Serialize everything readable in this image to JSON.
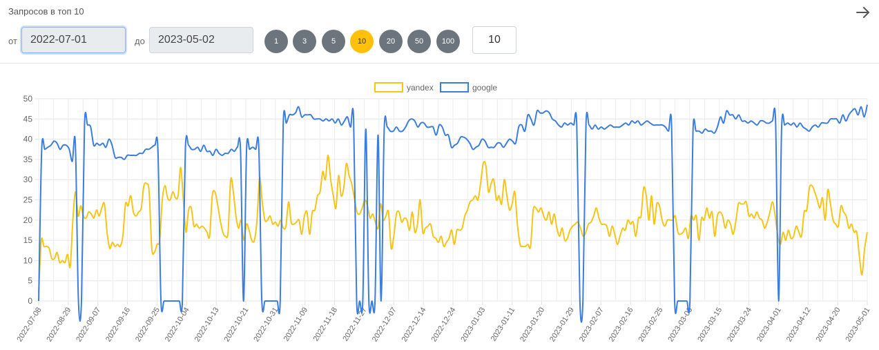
{
  "header": {
    "title": "Запросов в топ 10"
  },
  "filters": {
    "from_label": "от",
    "from_value": "2022-07-01",
    "to_label": "до",
    "to_value": "2023-05-02",
    "top_options": [
      "1",
      "3",
      "5",
      "10",
      "20",
      "50",
      "100"
    ],
    "top_selected": "10",
    "custom_value": "10"
  },
  "colors": {
    "yandex": "#f5c518",
    "google": "#3b7ddd",
    "pill": "#6c757d",
    "pill_active": "#ffc107"
  },
  "icons": {
    "next": "arrow-right-icon"
  },
  "chart_data": {
    "type": "line",
    "legend_position": "top-center",
    "grid": true,
    "ylim": [
      0,
      50
    ],
    "yticks": [
      0,
      5,
      10,
      15,
      20,
      25,
      30,
      35,
      40,
      45,
      50
    ],
    "x_start": "2022-07-08",
    "x_end": "2023-05-01",
    "x_ticks": [
      "2022-07-08",
      "2022-08-29",
      "2022-09-07",
      "2022-09-16",
      "2022-09-25",
      "2022-10-04",
      "2022-10-13",
      "2022-10-21",
      "2022-10-31",
      "2022-11-09",
      "2022-11-18",
      "2022-11-27",
      "2022-12-07",
      "2022-12-14",
      "2022-12-24",
      "2023-01-03",
      "2023-01-11",
      "2023-01-20",
      "2023-01-29",
      "2023-02-07",
      "2023-02-16",
      "2023-02-25",
      "2023-03-06",
      "2023-03-15",
      "2023-03-24",
      "2023-04-01",
      "2023-04-12",
      "2023-04-20",
      "2023-05-01"
    ],
    "series": [
      {
        "name": "yandex",
        "values": [
          2,
          15,
          13.5,
          13.5,
          13,
          10.5,
          10.5,
          12,
          9.5,
          10,
          9.5,
          11.5,
          8.5,
          20,
          27,
          21,
          23.5,
          21,
          20.5,
          22,
          21.5,
          20.5,
          22.5,
          21,
          23,
          24,
          17,
          13,
          14.5,
          13.5,
          14,
          13.5,
          16,
          24,
          23.5,
          26,
          22,
          21,
          22,
          23,
          28.5,
          29,
          27,
          13,
          12,
          14,
          15,
          25,
          28.5,
          25.5,
          25,
          27,
          25.5,
          26,
          33,
          25,
          17,
          22.5,
          23,
          18.5,
          19,
          18,
          18.5,
          18,
          17,
          16,
          26,
          27,
          24,
          20,
          17,
          16,
          17,
          30,
          27,
          21,
          18,
          20,
          15,
          19,
          17.5,
          15,
          15,
          20,
          30.5,
          24.5,
          20,
          20,
          21,
          19,
          19.5,
          18.5,
          20,
          18,
          18.5,
          24.5,
          19.5,
          19,
          19.5,
          20,
          16.5,
          21,
          22,
          16.5,
          22,
          22.5,
          26,
          27,
          32,
          30,
          36,
          30,
          26,
          23,
          31,
          26,
          28,
          34,
          31,
          29,
          25.5,
          22,
          21.5,
          23,
          25,
          23.5,
          20.5,
          21.5,
          19.5,
          18,
          24,
          20,
          21,
          22,
          13,
          16,
          21.5,
          22,
          19.5,
          20.5,
          20,
          17.5,
          22,
          17,
          19,
          25,
          17,
          18,
          18.5,
          19,
          16,
          15.5,
          14.5,
          16,
          13.5,
          14.5,
          15.5,
          17.5,
          14,
          17.5,
          17.5,
          18,
          21,
          22.5,
          24.5,
          25,
          26,
          25,
          29,
          34,
          33.5,
          27,
          29,
          30,
          25,
          26,
          24,
          30,
          26,
          22.5,
          24,
          27,
          19,
          14,
          13.5,
          13.5,
          14,
          13.5,
          22.5,
          23,
          22,
          23,
          21,
          20,
          22,
          19,
          21.5,
          18,
          16,
          18,
          15,
          15.5,
          17.5,
          18.5,
          19,
          19.5,
          18,
          16,
          17,
          19,
          19.5,
          21,
          23,
          20.5,
          19,
          19,
          18.5,
          16,
          18.5,
          16.5,
          14,
          16,
          18,
          17.5,
          20,
          19,
          19.5,
          16,
          20.5,
          21,
          28,
          26,
          20,
          26,
          19,
          24,
          23.5,
          20,
          18.5,
          20,
          20,
          20,
          21,
          17,
          16.5,
          17,
          18,
          15.5,
          21,
          20,
          21,
          15,
          20.5,
          20,
          23,
          20.5,
          22,
          16,
          21,
          22,
          21,
          18,
          20,
          19,
          16.5,
          19.5,
          24,
          24,
          24,
          24.5,
          21,
          21.5,
          20.5,
          22,
          20.5,
          20,
          18,
          19.5,
          22,
          24.5,
          21,
          16,
          14,
          17,
          15,
          17.5,
          15.5,
          16,
          18.5,
          17,
          16,
          22,
          22.5,
          28,
          28.5,
          27,
          25,
          23,
          25.5,
          20,
          27.5,
          24,
          20,
          19,
          18.5,
          23.5,
          22,
          21,
          18,
          19,
          17,
          17,
          11,
          6.5,
          13,
          17
        ]
      },
      {
        "name": "google",
        "values": [
          0,
          37.5,
          37.5,
          38,
          38.5,
          39.5,
          39,
          37.5,
          38.5,
          38.5,
          37.5,
          34.5,
          39,
          0,
          0,
          43.5,
          43.5,
          43,
          38.5,
          39,
          38.5,
          39,
          38,
          40,
          38.5,
          35.5,
          35.5,
          35.5,
          35,
          36,
          36,
          36,
          36,
          36.5,
          36.5,
          37.5,
          37.5,
          38,
          38.5,
          37.5,
          0,
          0,
          0,
          0,
          0,
          0,
          0,
          0,
          38,
          38.5,
          37.5,
          37.5,
          38,
          37,
          38.5,
          37,
          37,
          36,
          37.5,
          36.5,
          36,
          36.5,
          36.5,
          37.5,
          37,
          38,
          37.5,
          0,
          37.5,
          37.5,
          38,
          37.5,
          38,
          0,
          0,
          0,
          0,
          0,
          0,
          0,
          44,
          44,
          46,
          46,
          46.5,
          48,
          45.5,
          46,
          46,
          46,
          45,
          45,
          45,
          44.5,
          45,
          44.5,
          45,
          44,
          45,
          43.5,
          44.5,
          45.5,
          43,
          45,
          0,
          0,
          0,
          42.5,
          0,
          0,
          0,
          41,
          0,
          42.5,
          43,
          42,
          42,
          43,
          42,
          42,
          43,
          44.5,
          45,
          44.5,
          43,
          44,
          44,
          43,
          43,
          43,
          41,
          43.5,
          43,
          41,
          41,
          38,
          38.5,
          39,
          40.5,
          40.5,
          40,
          39,
          37.5,
          38,
          38.5,
          40,
          39.5,
          38,
          38,
          38,
          39,
          39,
          38,
          39,
          40,
          39.5,
          39,
          43,
          43.5,
          42,
          46,
          45,
          43.5,
          47,
          46.5,
          46.5,
          47,
          46.5,
          45,
          44.5,
          43.5,
          43,
          44,
          43.5,
          44,
          43.5,
          43.5,
          0,
          0,
          43.5,
          43.5,
          42.5,
          43.5,
          42.5,
          43,
          42.5,
          43,
          43.5,
          43,
          43,
          43,
          43.5,
          44,
          43.5,
          44.5,
          44,
          44.5,
          43.5,
          44,
          44.5,
          44,
          43.5,
          43.5,
          43.5,
          43.5,
          43,
          42,
          43.5,
          0,
          0,
          0,
          0,
          0,
          0,
          42,
          42,
          42,
          41.5,
          42.5,
          42,
          42,
          41.5,
          43,
          45.5,
          44,
          47,
          46,
          46,
          45,
          46,
          44.5,
          44.5,
          44,
          44.5,
          44,
          43.5,
          44.5,
          44.5,
          44,
          44,
          44.5,
          44.5,
          0,
          43,
          43.5,
          44,
          43.5,
          44,
          43,
          44,
          43,
          42.5,
          42,
          43,
          43.5,
          43,
          44,
          44,
          44,
          45,
          45,
          45,
          44,
          46,
          44.5,
          46,
          47,
          47.5,
          46,
          48,
          45.5,
          48.5
        ]
      }
    ]
  }
}
